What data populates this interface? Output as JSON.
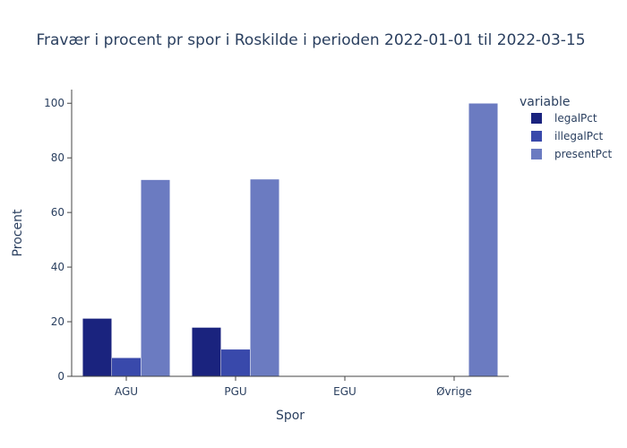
{
  "chart_data": {
    "type": "bar",
    "title": "Fravær i procent pr spor i Roskilde i perioden 2022-01-01 til 2022-03-15",
    "xlabel": "Spor",
    "ylabel": "Procent",
    "categories": [
      "AGU",
      "PGU",
      "EGU",
      "Øvrige"
    ],
    "series": [
      {
        "name": "legalPct",
        "color": "#1a237e",
        "values": [
          21.2,
          17.9,
          0,
          0
        ]
      },
      {
        "name": "illegalPct",
        "color": "#3949ab",
        "values": [
          6.8,
          9.9,
          0,
          0
        ]
      },
      {
        "name": "presentPct",
        "color": "#6b7bc1",
        "values": [
          72.0,
          72.2,
          0,
          100
        ]
      }
    ],
    "yticks": [
      "0",
      "20",
      "40",
      "60",
      "80",
      "100"
    ],
    "ylim": [
      0,
      105
    ],
    "legend": {
      "title": "variable",
      "position": "right"
    },
    "grid": false
  }
}
